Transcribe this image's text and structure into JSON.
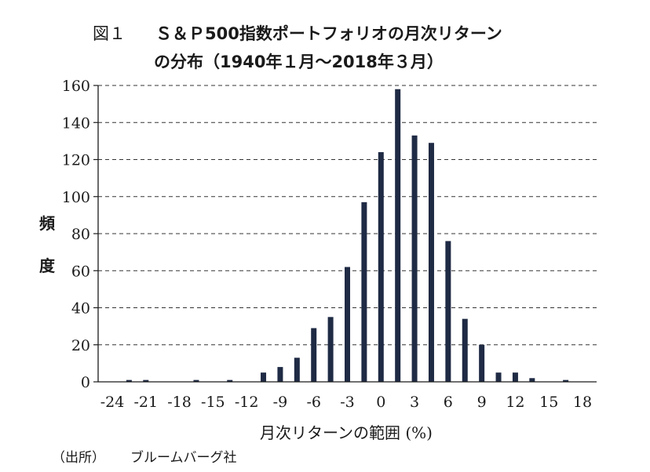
{
  "title": {
    "figure_label": "図１",
    "line1": "Ｓ＆Ｐ500指数ポートフォリオの月次リターン",
    "line2": "の分布（1940年１月〜2018年３月）"
  },
  "source": {
    "label": "（出所）",
    "name": "ブルームバーグ社"
  },
  "colors": {
    "bar": "#1f2a44",
    "axis": "#1a1a1a",
    "grid": "#333333"
  },
  "chart_data": {
    "type": "bar",
    "title": "Ｓ＆Ｐ500指数ポートフォリオの月次リターンの分布（1940年１月〜2018年３月）",
    "xlabel": "月次リターンの範囲 (%)",
    "ylabel": "頻度",
    "ylim": [
      0,
      160
    ],
    "yticks": [
      0,
      20,
      40,
      60,
      80,
      100,
      120,
      140,
      160
    ],
    "xtick_labels": [
      "-24",
      "-21",
      "-18",
      "-15",
      "-12",
      "-9",
      "-6",
      "-3",
      "0",
      "3",
      "6",
      "9",
      "12",
      "15",
      "18"
    ],
    "x_range": [
      -24,
      18
    ],
    "grid": "horizontal dashed",
    "categories": [
      -22.5,
      -21,
      -19.5,
      -18,
      -16.5,
      -15,
      -13.5,
      -12,
      -10.5,
      -9,
      -7.5,
      -6,
      -4.5,
      -3,
      -1.5,
      0,
      1.5,
      3,
      4.5,
      6,
      7.5,
      9,
      10.5,
      12,
      13.5,
      15,
      16.5
    ],
    "values": [
      1,
      1,
      0,
      0,
      1,
      0,
      1,
      0,
      5,
      8,
      13,
      29,
      35,
      62,
      97,
      124,
      158,
      133,
      129,
      76,
      34,
      20,
      5,
      5,
      2,
      0,
      1
    ]
  }
}
